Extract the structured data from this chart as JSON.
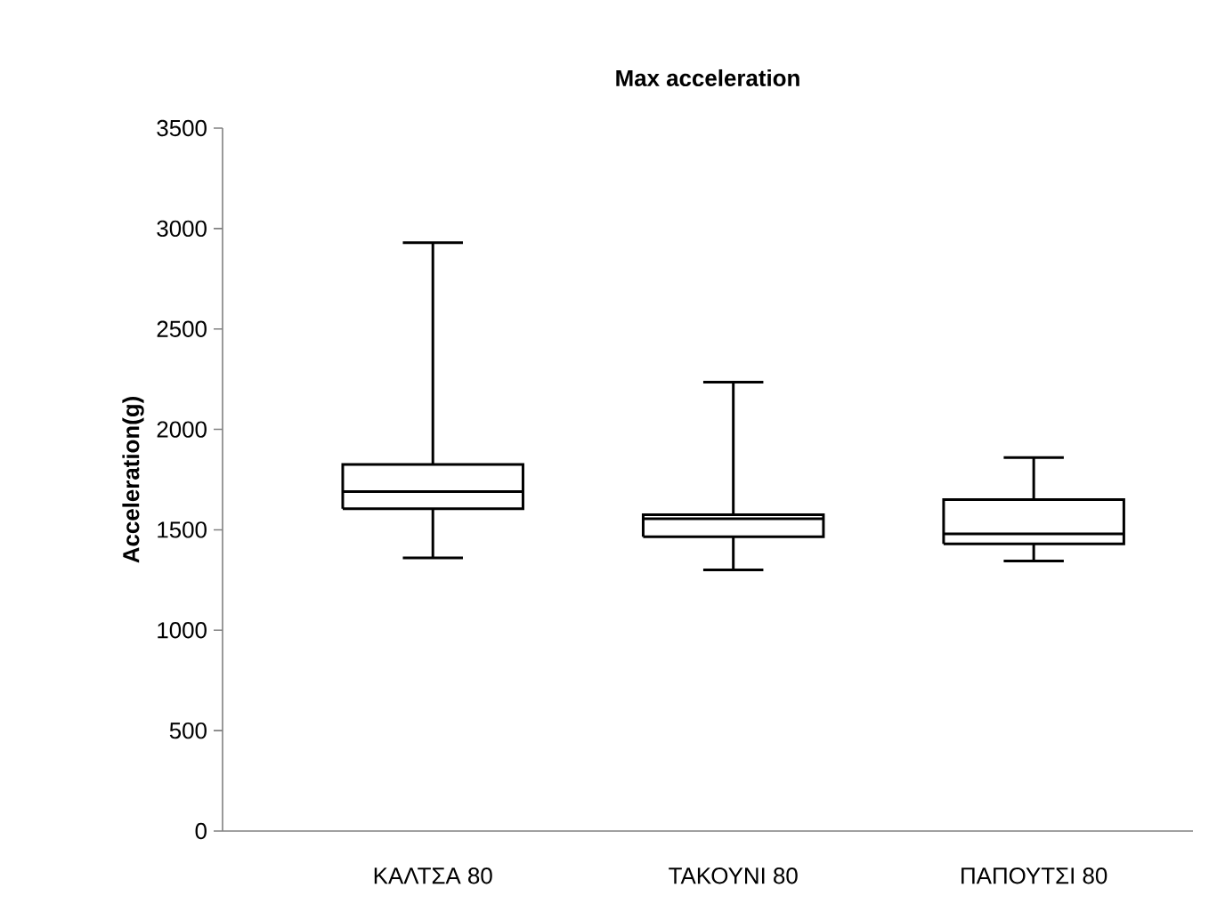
{
  "chart_data": {
    "type": "box",
    "title": "Max acceleration",
    "ylabel": "Acceleration(g)",
    "categories": [
      "ΚΑΛΤΣΑ 80",
      "ΤΑΚΟΥΝΙ 80",
      "ΠΑΠΟΥΤΣΙ 80"
    ],
    "boxes": [
      {
        "low": 1360,
        "q1": 1605,
        "median": 1690,
        "q3": 1825,
        "high": 2930
      },
      {
        "low": 1300,
        "q1": 1465,
        "median": 1555,
        "q3": 1575,
        "high": 2235
      },
      {
        "low": 1345,
        "q1": 1430,
        "median": 1480,
        "q3": 1650,
        "high": 1860
      }
    ],
    "color": "#000000",
    "ylim": [
      0,
      3500
    ],
    "yticks": [
      0,
      500,
      1000,
      1500,
      2000,
      2500,
      3000,
      3500
    ],
    "grid": false
  }
}
